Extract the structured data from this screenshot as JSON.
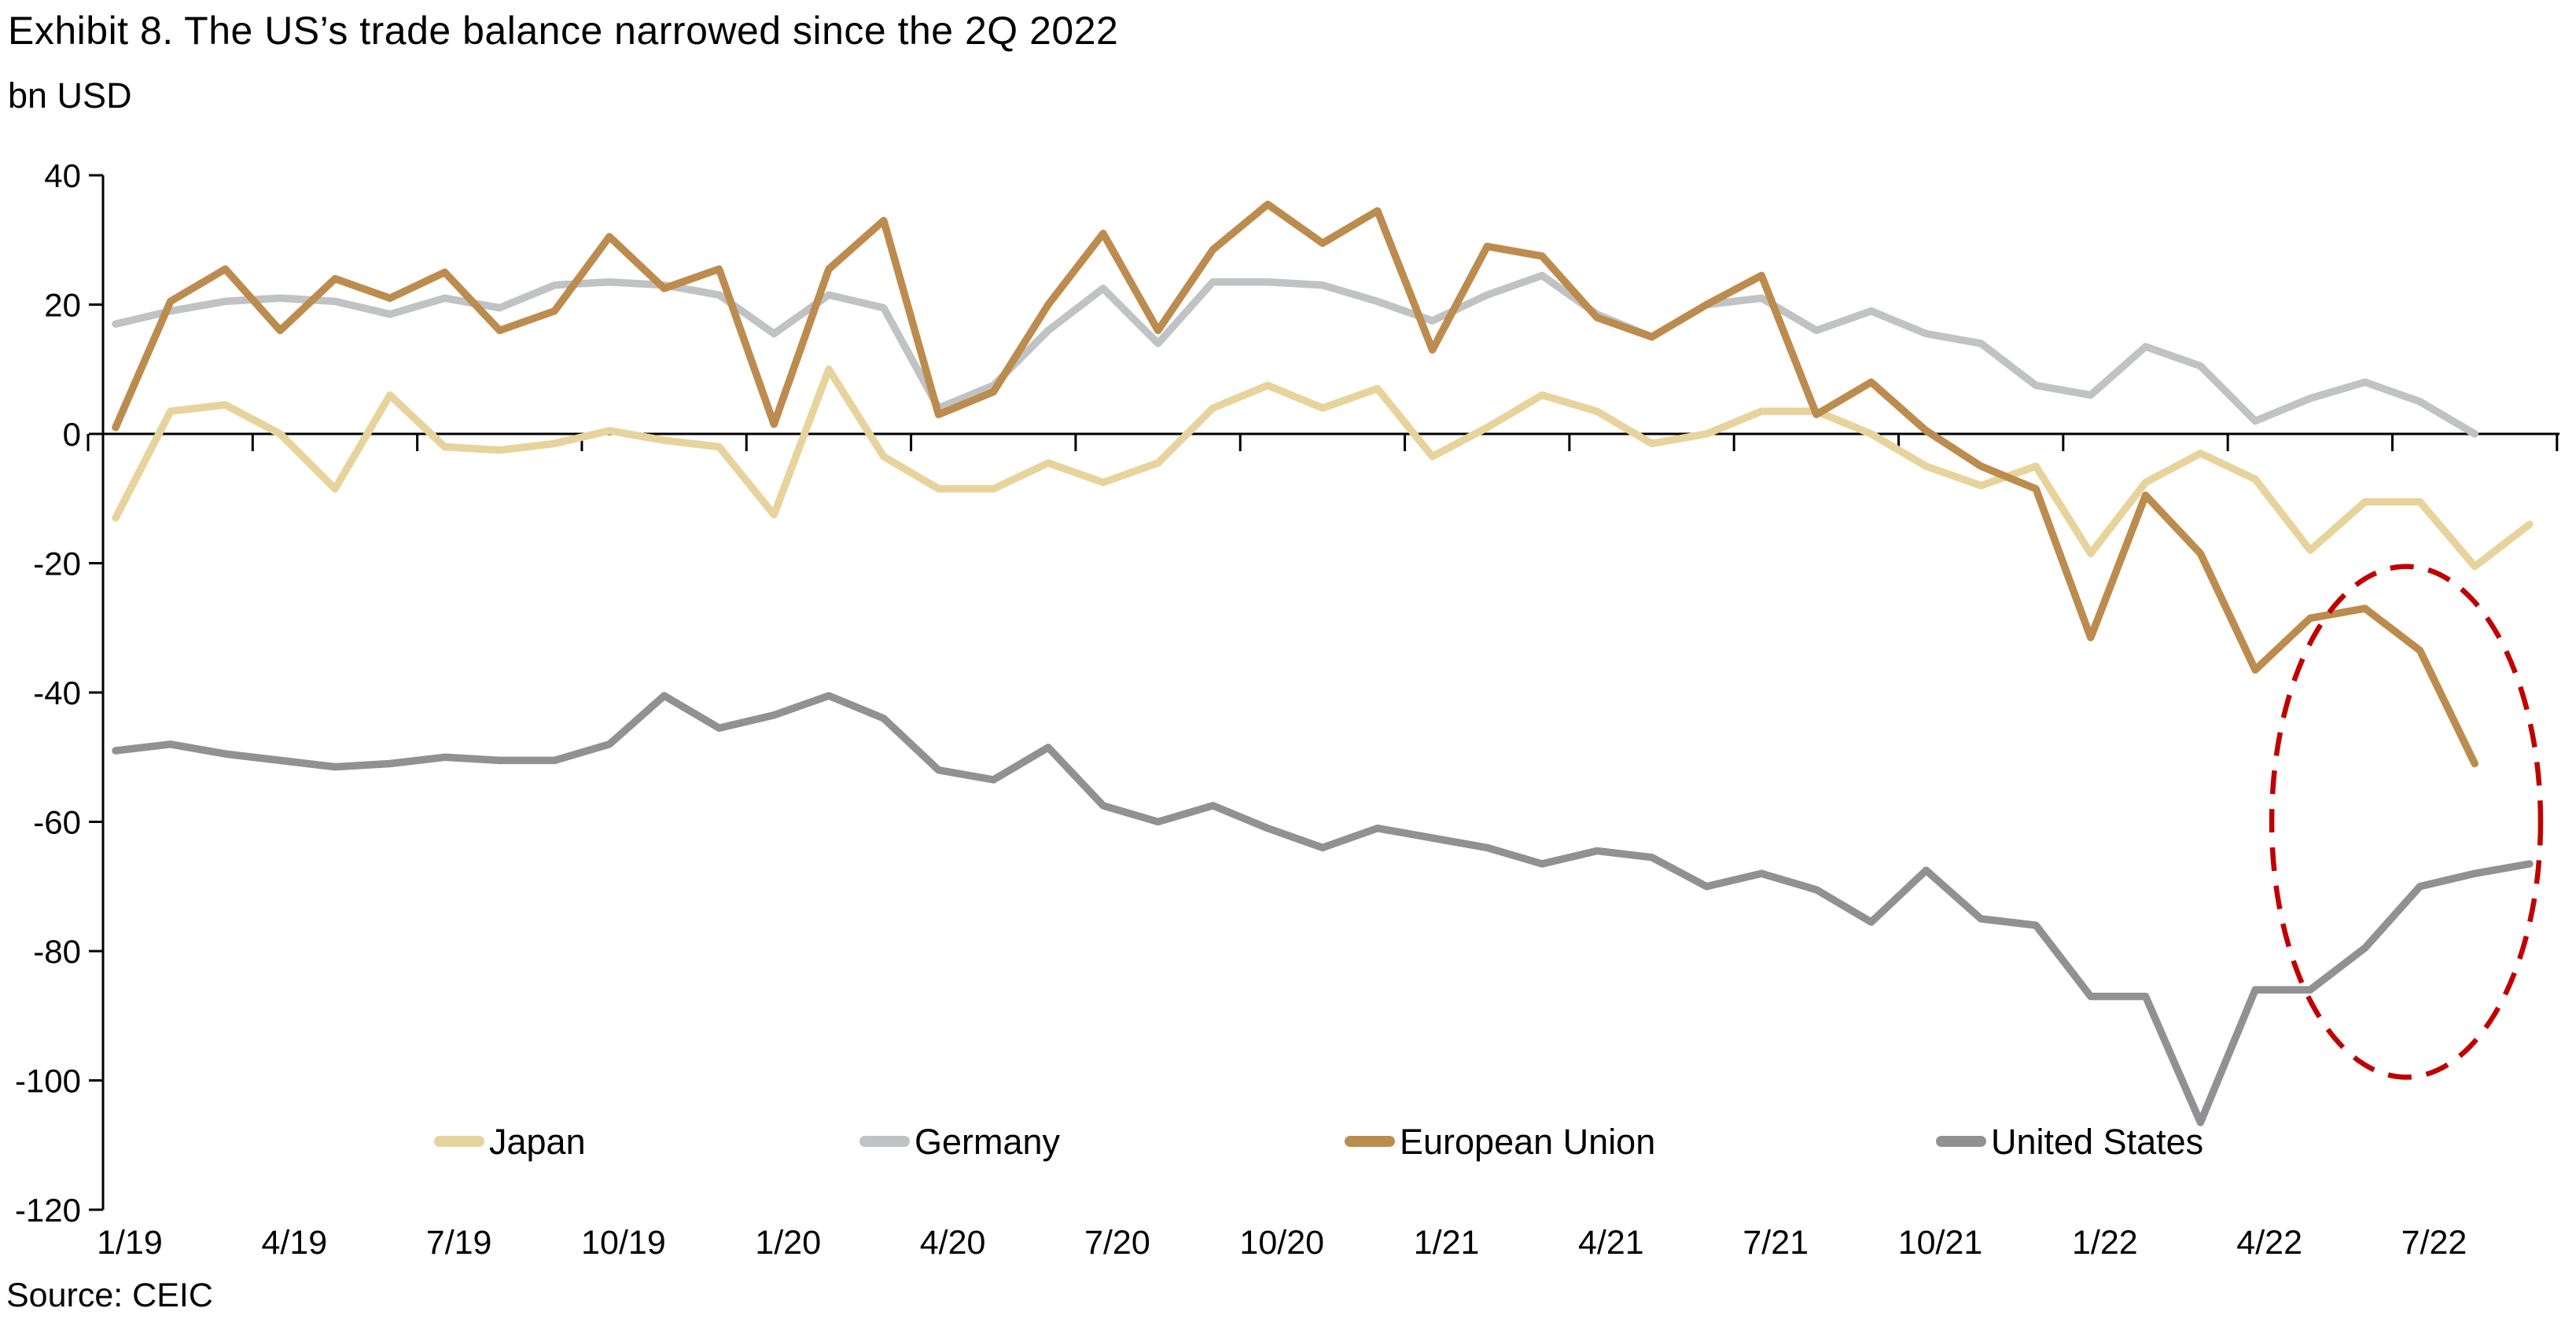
{
  "page": {
    "title": "Exhibit 8. The US’s trade balance narrowed since the 2Q 2022",
    "subtitle": "bn USD",
    "source": "Source: CEIC"
  },
  "colors": {
    "japan": "#E7D49C",
    "germany": "#C1C2C4",
    "european_union": "#BC8C4E",
    "united_states": "#919193",
    "annotation_red": "#C00000",
    "axis_black": "#000000"
  },
  "legend": {
    "items": [
      {
        "label": "Japan",
        "color": "#E7D49C"
      },
      {
        "label": "Germany",
        "color": "#C1C2C4"
      },
      {
        "label": "European Union",
        "color": "#BC8C4E"
      },
      {
        "label": "United States",
        "color": "#919193"
      }
    ]
  },
  "chart_data": {
    "type": "line",
    "title": "Exhibit 8. The US’s trade balance narrowed since the 2Q 2022",
    "ylabel": "bn USD",
    "xlabel": "",
    "grid": false,
    "legend_position": "bottom",
    "ylim": [
      -120,
      40
    ],
    "ytick_step": 20,
    "ytick_labels": [
      "40",
      "20",
      "0",
      "-20",
      "-40",
      "-60",
      "-80",
      "-100",
      "-120"
    ],
    "x": [
      "1/19",
      "2/19",
      "3/19",
      "4/19",
      "5/19",
      "6/19",
      "7/19",
      "8/19",
      "9/19",
      "10/19",
      "11/19",
      "12/19",
      "1/20",
      "2/20",
      "3/20",
      "4/20",
      "5/20",
      "6/20",
      "7/20",
      "8/20",
      "9/20",
      "10/20",
      "11/20",
      "12/20",
      "1/21",
      "2/21",
      "3/21",
      "4/21",
      "5/21",
      "6/21",
      "7/21",
      "8/21",
      "9/21",
      "10/21",
      "11/21",
      "12/21",
      "1/22",
      "2/22",
      "3/22",
      "4/22",
      "5/22",
      "6/22",
      "7/22",
      "8/22",
      "9/22"
    ],
    "x_tick_labels": [
      "1/19",
      "4/19",
      "7/19",
      "10/19",
      "1/20",
      "4/20",
      "7/20",
      "10/20",
      "1/21",
      "4/21",
      "7/21",
      "10/21",
      "1/22",
      "4/22",
      "7/22"
    ],
    "series": [
      {
        "name": "Japan",
        "color": "#E7D49C",
        "values": [
          -13,
          3.5,
          4.5,
          0,
          -8.5,
          6,
          -2,
          -2.5,
          -1.5,
          0.5,
          -1,
          -2,
          -12.5,
          10,
          -3.5,
          -8.5,
          -8.5,
          -4.5,
          -7.5,
          -4.5,
          4,
          7.5,
          4,
          7,
          -3.5,
          1,
          6,
          3.5,
          -1.5,
          0,
          3.5,
          3.5,
          0,
          -5,
          -8,
          -5,
          -18.5,
          -7.5,
          -3,
          -7,
          -18,
          -10.5,
          -10.5,
          -20.5,
          -14
        ]
      },
      {
        "name": "Germany",
        "color": "#C1C2C4",
        "values": [
          17,
          19,
          20.5,
          21,
          20.5,
          18.5,
          21,
          19.5,
          23,
          23.5,
          23,
          21.5,
          15.5,
          21.5,
          19.5,
          4,
          7.5,
          16,
          22.5,
          14,
          23.5,
          23.5,
          23,
          20.5,
          17.5,
          21.5,
          24.5,
          18.5,
          15,
          20,
          21,
          16,
          19,
          15.5,
          14,
          7.5,
          6,
          13.5,
          10.5,
          2,
          5.5,
          8,
          5,
          0,
          null
        ]
      },
      {
        "name": "European Union",
        "color": "#BC8C4E",
        "values": [
          1,
          20.5,
          25.5,
          16,
          24,
          21,
          25,
          16,
          19,
          30.5,
          22.5,
          25.5,
          1.5,
          25.5,
          33,
          3,
          6.5,
          20,
          31,
          16,
          28.5,
          35.5,
          29.5,
          34.5,
          13,
          29,
          27.5,
          18,
          15,
          20,
          24.5,
          3,
          8,
          0.5,
          -5,
          -8.5,
          -31.5,
          -9.5,
          -18.5,
          -36.5,
          -28.5,
          -27,
          -33.5,
          -51,
          null
        ]
      },
      {
        "name": "United States",
        "color": "#919193",
        "values": [
          -49,
          -48,
          -49.5,
          -50.5,
          -51.5,
          -51,
          -50,
          -50.5,
          -50.5,
          -48,
          -40.5,
          -45.5,
          -43.5,
          -40.5,
          -44,
          -52,
          -53.5,
          -48.5,
          -57.5,
          -60,
          -57.5,
          -61,
          -64,
          -61,
          -62.5,
          -64,
          -66.5,
          -64.5,
          -65.5,
          -70,
          -68,
          -70.5,
          -75.5,
          -67.5,
          -75,
          -76,
          -87,
          -87,
          -106.5,
          -86,
          -86,
          -79.5,
          -70,
          -68,
          -66.5
        ]
      }
    ],
    "annotation": {
      "shape": "dashed-ellipse",
      "color": "#C00000",
      "month_index_span": [
        39.3,
        44.2
      ],
      "value_span": [
        -20.5,
        -99.5
      ]
    }
  }
}
